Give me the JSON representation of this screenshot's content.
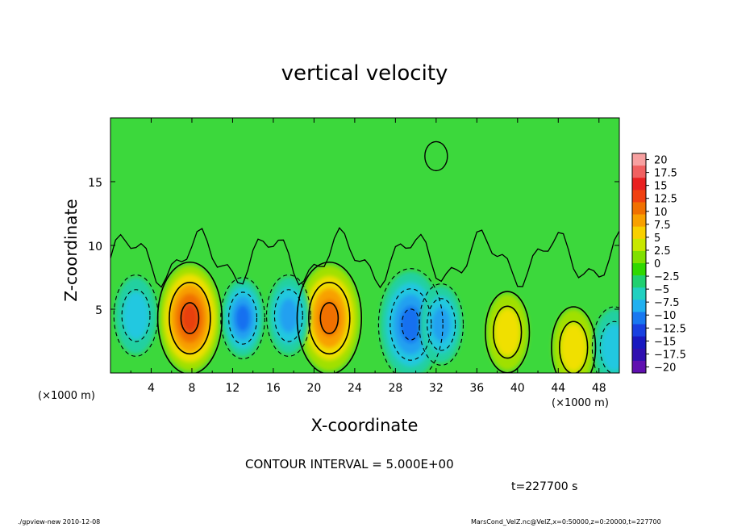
{
  "chart_data": {
    "type": "heatmap",
    "title": "vertical velocity",
    "xlabel": "X-coordinate",
    "ylabel": "Z-coordinate",
    "x_unit_label": "(×1000 m)",
    "xlim": [
      0,
      50
    ],
    "ylim": [
      0,
      20
    ],
    "x_ticks": [
      4,
      8,
      12,
      16,
      20,
      24,
      28,
      32,
      36,
      40,
      44,
      48
    ],
    "y_ticks": [
      5,
      10,
      15
    ],
    "colorbar": {
      "ticks": [
        "20",
        "17.5",
        "15",
        "12.5",
        "10",
        "7.5",
        "5",
        "2.5",
        "0",
        "−2.5",
        "−5",
        "−7.5",
        "−10",
        "−12.5",
        "−15",
        "−17.5",
        "−20"
      ],
      "colors": [
        "#f7a0a0",
        "#f06060",
        "#e82020",
        "#f04010",
        "#f07000",
        "#f8a000",
        "#f8d000",
        "#c8e800",
        "#80e000",
        "#30d800",
        "#20d070",
        "#20d0c0",
        "#20b0f0",
        "#1878f0",
        "#1840e0",
        "#1818c0",
        "#3010b0",
        "#6010b0"
      ]
    },
    "features": [
      {
        "kind": "updraft",
        "x": 7.8,
        "z": 4.3,
        "peak": 12
      },
      {
        "kind": "updraft",
        "x": 21.5,
        "z": 4.3,
        "peak": 11
      },
      {
        "kind": "updraft",
        "x": 39,
        "z": 3.2,
        "peak": 5
      },
      {
        "kind": "updraft",
        "x": 45.5,
        "z": 2.0,
        "peak": 5
      },
      {
        "kind": "downdraft",
        "x": 2.5,
        "z": 4.5,
        "peak": -6
      },
      {
        "kind": "downdraft",
        "x": 13,
        "z": 4.3,
        "peak": -9
      },
      {
        "kind": "downdraft",
        "x": 17.5,
        "z": 4.5,
        "peak": -8
      },
      {
        "kind": "downdraft",
        "x": 29.5,
        "z": 3.8,
        "peak": -10
      },
      {
        "kind": "downdraft",
        "x": 32.5,
        "z": 3.8,
        "peak": -8
      },
      {
        "kind": "downdraft",
        "x": 49.5,
        "z": 2.0,
        "peak": -6
      }
    ]
  },
  "contour_interval": "CONTOUR INTERVAL = 5.000E+00",
  "time_label": "t=227700 s",
  "footer_left": "./gpview-new   2010-12-08",
  "footer_right": "MarsCond_VelZ.nc@VelZ,x=0:50000,z=0:20000,t=227700"
}
